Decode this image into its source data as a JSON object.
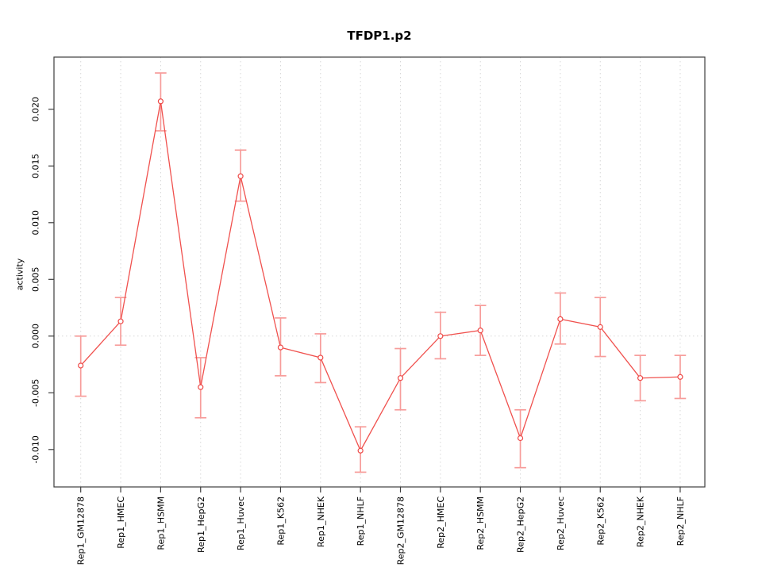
{
  "window": {
    "background": "#ffffff"
  },
  "chart_data": {
    "type": "line",
    "title": "TFDP1.p2",
    "xlabel": "",
    "ylabel": "activity",
    "categories": [
      "Rep1_GM12878",
      "Rep1_HMEC",
      "Rep1_HSMM",
      "Rep1_HepG2",
      "Rep1_Huvec",
      "Rep1_K562",
      "Rep1_NHEK",
      "Rep1_NHLF",
      "Rep2_GM12878",
      "Rep2_HMEC",
      "Rep2_HSMM",
      "Rep2_HepG2",
      "Rep2_Huvec",
      "Rep2_K562",
      "Rep2_NHEK",
      "Rep2_NHLF"
    ],
    "series": [
      {
        "name": "activity",
        "values": [
          -0.0026,
          0.0013,
          0.0207,
          -0.0045,
          0.0141,
          -0.001,
          -0.0019,
          -0.0101,
          -0.0037,
          0.0,
          0.0005,
          -0.009,
          0.0015,
          0.0008,
          -0.0037,
          -0.0036
        ],
        "err_high": [
          0.0,
          0.0034,
          0.0232,
          -0.0019,
          0.0164,
          0.0016,
          0.0002,
          -0.008,
          -0.0011,
          0.0021,
          0.0027,
          -0.0065,
          0.0038,
          0.0034,
          -0.0017,
          -0.0017
        ],
        "err_low": [
          -0.0053,
          -0.0008,
          0.0181,
          -0.0072,
          0.0119,
          -0.0035,
          -0.0041,
          -0.012,
          -0.0065,
          -0.002,
          -0.0017,
          -0.0116,
          -0.0007,
          -0.0018,
          -0.0057,
          -0.0055
        ]
      }
    ],
    "yticks": [
      {
        "v": 0.02,
        "label": "0.020"
      },
      {
        "v": 0.015,
        "label": "0.015"
      },
      {
        "v": 0.01,
        "label": "0.010"
      },
      {
        "v": 0.005,
        "label": "0.005"
      },
      {
        "v": 0.0,
        "label": "0.000"
      },
      {
        "v": -0.005,
        "label": "-0.005"
      },
      {
        "v": -0.01,
        "label": "-0.010"
      }
    ],
    "ylim": [
      -0.0133,
      0.0246
    ],
    "grid": {
      "vertical_dotted": true,
      "zero_line_dotted": true,
      "horizontal_lines": false
    },
    "legend": "none",
    "point_style": "open-circle",
    "tick_label_rotation": -90,
    "colors": {
      "line": "#f0514e",
      "error_bar": "#f79c9a",
      "point": "#ee4a48",
      "point_fill": "#ffffff",
      "grid": "#d7d7d7",
      "frame": "#3e3e3e",
      "tick": "#3e3e3e",
      "text": "#000000",
      "background": "#ffffff"
    }
  }
}
